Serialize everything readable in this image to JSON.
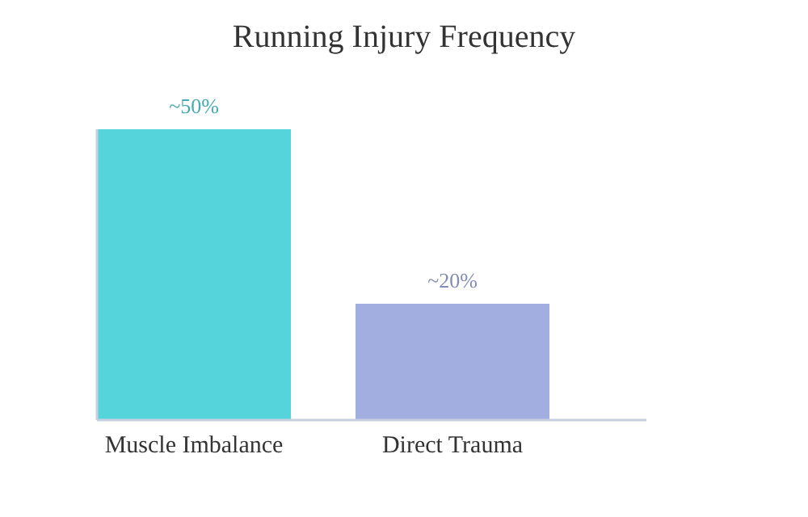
{
  "chart_data": {
    "type": "bar",
    "title": "Running Injury Frequency",
    "categories": [
      "Muscle Imbalance",
      "Direct Trauma"
    ],
    "values": [
      50,
      20
    ],
    "colors": [
      "#56d4db",
      "#a3aee0"
    ],
    "value_labels": [
      "~50%",
      "~20%"
    ]
  }
}
